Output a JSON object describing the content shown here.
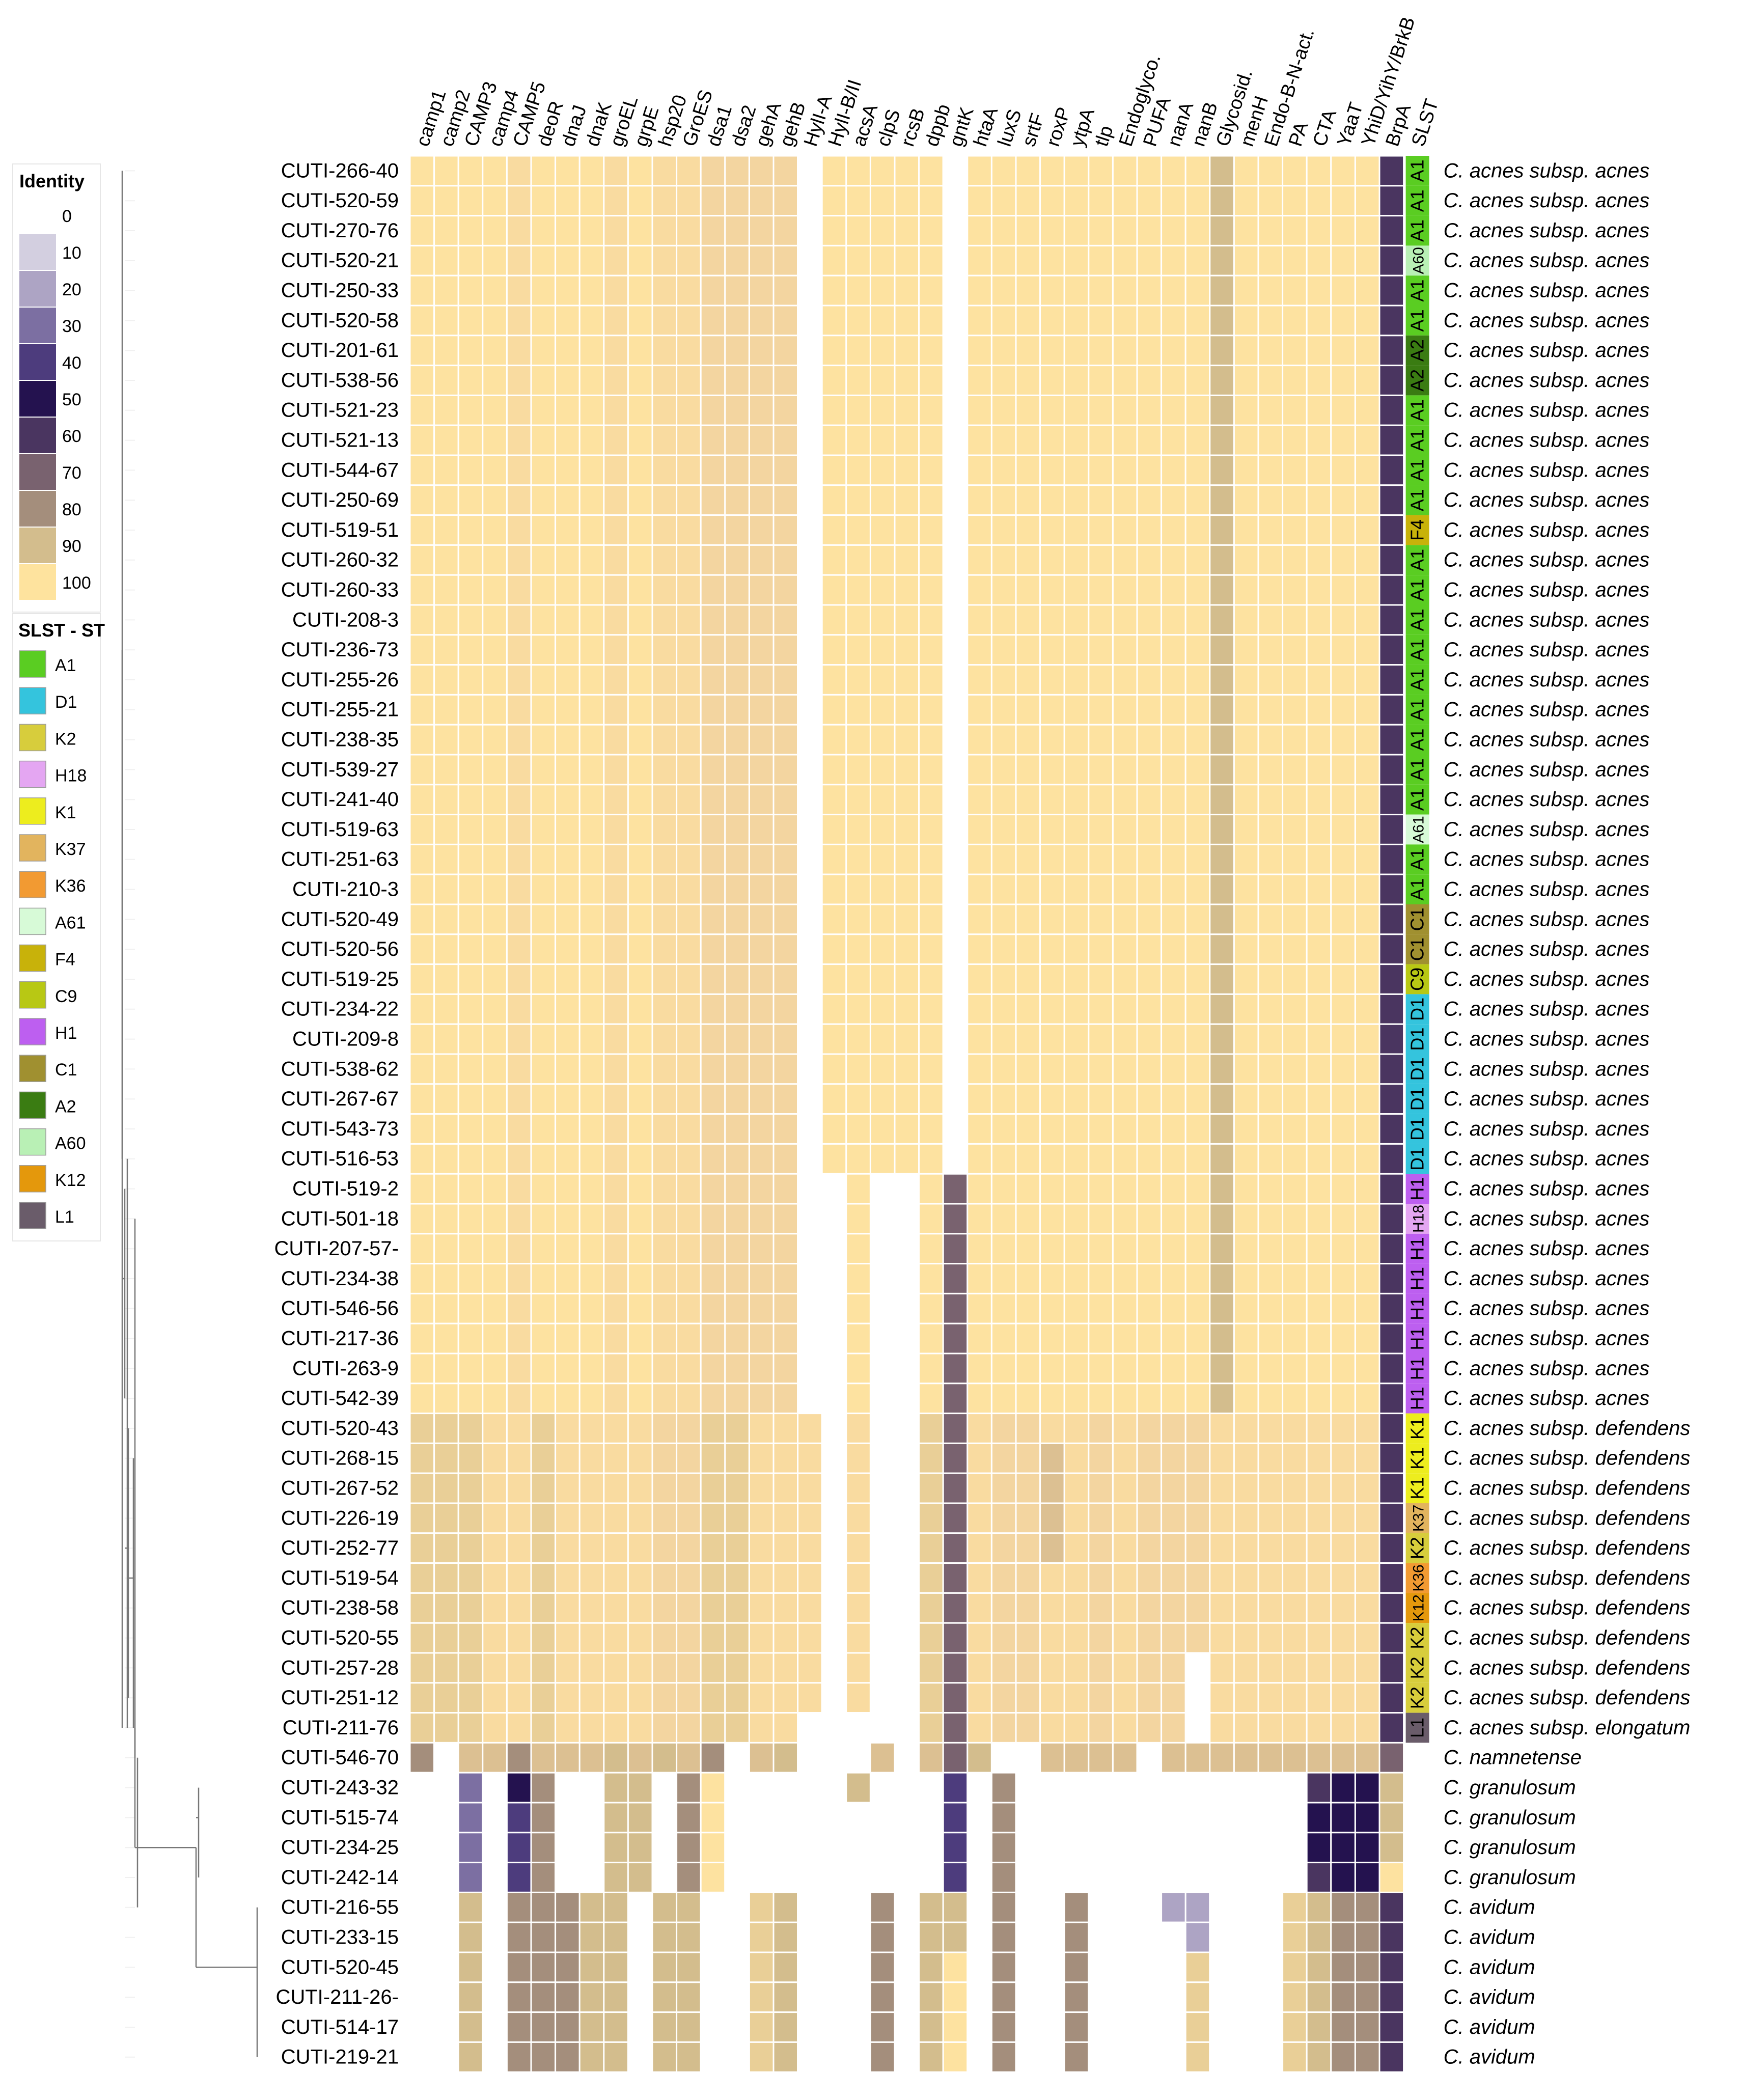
{
  "chart_data": {
    "type": "heatmap",
    "title": "",
    "columns": [
      "camp1",
      "camp2",
      "CAMP3",
      "camp4",
      "CAMP5",
      "deoR",
      "dnaJ",
      "dnaK",
      "groEL",
      "grpE",
      "hsp20",
      "GroES",
      "dsa1",
      "dsa2",
      "gehA",
      "gehB",
      "HylI-A",
      "HylI-B/II",
      "acsA",
      "clpS",
      "rcsB",
      "dppb",
      "gntK",
      "htaA",
      "luxS",
      "srtF",
      "roxP",
      "ytpA",
      "tlp",
      "Endoglyco.",
      "PUFA",
      "nanA",
      "nanB",
      "Glycosid.",
      "menH",
      "Endo-B-N-act.",
      "PA",
      "CTA",
      "YaaT",
      "YhiD/YihY/BrkB",
      "BrpA"
    ],
    "slst_header": "SLST",
    "identity_legend": {
      "title": "Identity",
      "levels": [
        "0",
        "10",
        "20",
        "30",
        "40",
        "50",
        "60",
        "70",
        "80",
        "90",
        "100"
      ],
      "colors": [
        "#ffffff",
        "#d3cfe0",
        "#ada4c4",
        "#7c6fa2",
        "#4d3c7d",
        "#24124f",
        "#4a3560",
        "#79626f",
        "#a48e7c",
        "#d3bd8d",
        "#fee39e"
      ]
    },
    "slst_legend": {
      "title": "SLST - ST",
      "items": [
        {
          "name": "A1",
          "color": "#5acd22"
        },
        {
          "name": "D1",
          "color": "#34c4dd"
        },
        {
          "name": "K2",
          "color": "#d7cd3c"
        },
        {
          "name": "H18",
          "color": "#e4a6f2"
        },
        {
          "name": "K1",
          "color": "#eded1e"
        },
        {
          "name": "K37",
          "color": "#e2b45e"
        },
        {
          "name": "K36",
          "color": "#f29a32"
        },
        {
          "name": "A61",
          "color": "#d7fad7"
        },
        {
          "name": "F4",
          "color": "#c8b20a"
        },
        {
          "name": "C9",
          "color": "#b8c814"
        },
        {
          "name": "H1",
          "color": "#bd5ff0"
        },
        {
          "name": "C1",
          "color": "#a09030"
        },
        {
          "name": "A2",
          "color": "#3a7c12"
        },
        {
          "name": "A60",
          "color": "#b9f0b5"
        },
        {
          "name": "K12",
          "color": "#e4980c"
        },
        {
          "name": "L1",
          "color": "#6a5c6a"
        }
      ]
    },
    "rows": [
      {
        "id": "CUTI-266-40",
        "st": "A1",
        "sp": "C. acnes subsp. acnes",
        "g": "a"
      },
      {
        "id": "CUTI-520-59",
        "st": "A1",
        "sp": "C. acnes subsp. acnes",
        "g": "a"
      },
      {
        "id": "CUTI-270-76",
        "st": "A1",
        "sp": "C. acnes subsp. acnes",
        "g": "a"
      },
      {
        "id": "CUTI-520-21",
        "st": "A60",
        "sp": "C. acnes subsp. acnes",
        "g": "a"
      },
      {
        "id": "CUTI-250-33",
        "st": "A1",
        "sp": "C. acnes subsp. acnes",
        "g": "a"
      },
      {
        "id": "CUTI-520-58",
        "st": "A1",
        "sp": "C. acnes subsp. acnes",
        "g": "a"
      },
      {
        "id": "CUTI-201-61",
        "st": "A2",
        "sp": "C. acnes subsp. acnes",
        "g": "a"
      },
      {
        "id": "CUTI-538-56",
        "st": "A2",
        "sp": "C. acnes subsp. acnes",
        "g": "a"
      },
      {
        "id": "CUTI-521-23",
        "st": "A1",
        "sp": "C. acnes subsp. acnes",
        "g": "a"
      },
      {
        "id": "CUTI-521-13",
        "st": "A1",
        "sp": "C. acnes subsp. acnes",
        "g": "a"
      },
      {
        "id": "CUTI-544-67",
        "st": "A1",
        "sp": "C. acnes subsp. acnes",
        "g": "a"
      },
      {
        "id": "CUTI-250-69",
        "st": "A1",
        "sp": "C. acnes subsp. acnes",
        "g": "a"
      },
      {
        "id": "CUTI-519-51",
        "st": "F4",
        "sp": "C. acnes subsp. acnes",
        "g": "a"
      },
      {
        "id": "CUTI-260-32",
        "st": "A1",
        "sp": "C. acnes subsp. acnes",
        "g": "a"
      },
      {
        "id": "CUTI-260-33",
        "st": "A1",
        "sp": "C. acnes subsp. acnes",
        "g": "a"
      },
      {
        "id": "CUTI-208-3",
        "st": "A1",
        "sp": "C. acnes subsp. acnes",
        "g": "a"
      },
      {
        "id": "CUTI-236-73",
        "st": "A1",
        "sp": "C. acnes subsp. acnes",
        "g": "a"
      },
      {
        "id": "CUTI-255-26",
        "st": "A1",
        "sp": "C. acnes subsp. acnes",
        "g": "a"
      },
      {
        "id": "CUTI-255-21",
        "st": "A1",
        "sp": "C. acnes subsp. acnes",
        "g": "a"
      },
      {
        "id": "CUTI-238-35",
        "st": "A1",
        "sp": "C. acnes subsp. acnes",
        "g": "a"
      },
      {
        "id": "CUTI-539-27",
        "st": "A1",
        "sp": "C. acnes subsp. acnes",
        "g": "a"
      },
      {
        "id": "CUTI-241-40",
        "st": "A1",
        "sp": "C. acnes subsp. acnes",
        "g": "a"
      },
      {
        "id": "CUTI-519-63",
        "st": "A61",
        "sp": "C. acnes subsp. acnes",
        "g": "a"
      },
      {
        "id": "CUTI-251-63",
        "st": "A1",
        "sp": "C. acnes subsp. acnes",
        "g": "a"
      },
      {
        "id": "CUTI-210-3",
        "st": "A1",
        "sp": "C. acnes subsp. acnes",
        "g": "a"
      },
      {
        "id": "CUTI-520-49",
        "st": "C1",
        "sp": "C. acnes subsp. acnes",
        "g": "a"
      },
      {
        "id": "CUTI-520-56",
        "st": "C1",
        "sp": "C. acnes subsp. acnes",
        "g": "a"
      },
      {
        "id": "CUTI-519-25",
        "st": "C9",
        "sp": "C. acnes subsp. acnes",
        "g": "a"
      },
      {
        "id": "CUTI-234-22",
        "st": "D1",
        "sp": "C. acnes subsp. acnes",
        "g": "a"
      },
      {
        "id": "CUTI-209-8",
        "st": "D1",
        "sp": "C. acnes subsp. acnes",
        "g": "a"
      },
      {
        "id": "CUTI-538-62",
        "st": "D1",
        "sp": "C. acnes subsp. acnes",
        "g": "a"
      },
      {
        "id": "CUTI-267-67",
        "st": "D1",
        "sp": "C. acnes subsp. acnes",
        "g": "a"
      },
      {
        "id": "CUTI-543-73",
        "st": "D1",
        "sp": "C. acnes subsp. acnes",
        "g": "a"
      },
      {
        "id": "CUTI-516-53",
        "st": "D1",
        "sp": "C. acnes subsp. acnes",
        "g": "a"
      },
      {
        "id": "CUTI-519-2",
        "st": "H1",
        "sp": "C. acnes subsp. acnes",
        "g": "h"
      },
      {
        "id": "CUTI-501-18",
        "st": "H18",
        "sp": "C. acnes subsp. acnes",
        "g": "h"
      },
      {
        "id": "CUTI-207-57-",
        "st": "H1",
        "sp": "C. acnes subsp. acnes",
        "g": "h"
      },
      {
        "id": "CUTI-234-38",
        "st": "H1",
        "sp": "C. acnes subsp. acnes",
        "g": "h"
      },
      {
        "id": "CUTI-546-56",
        "st": "H1",
        "sp": "C. acnes subsp. acnes",
        "g": "h"
      },
      {
        "id": "CUTI-217-36",
        "st": "H1",
        "sp": "C. acnes subsp. acnes",
        "g": "h"
      },
      {
        "id": "CUTI-263-9",
        "st": "H1",
        "sp": "C. acnes subsp. acnes",
        "g": "h"
      },
      {
        "id": "CUTI-542-39",
        "st": "H1",
        "sp": "C. acnes subsp. acnes",
        "g": "h"
      },
      {
        "id": "CUTI-520-43",
        "st": "K1",
        "sp": "C. acnes subsp. defendens",
        "g": "k"
      },
      {
        "id": "CUTI-268-15",
        "st": "K1",
        "sp": "C. acnes subsp. defendens",
        "g": "k"
      },
      {
        "id": "CUTI-267-52",
        "st": "K1",
        "sp": "C. acnes subsp. defendens",
        "g": "k"
      },
      {
        "id": "CUTI-226-19",
        "st": "K37",
        "sp": "C. acnes subsp. defendens",
        "g": "k"
      },
      {
        "id": "CUTI-252-77",
        "st": "K2",
        "sp": "C. acnes subsp. defendens",
        "g": "k"
      },
      {
        "id": "CUTI-519-54",
        "st": "K36",
        "sp": "C. acnes subsp. defendens",
        "g": "k"
      },
      {
        "id": "CUTI-238-58",
        "st": "K12",
        "sp": "C. acnes subsp. defendens",
        "g": "k"
      },
      {
        "id": "CUTI-520-55",
        "st": "K2",
        "sp": "C. acnes subsp. defendens",
        "g": "k"
      },
      {
        "id": "CUTI-257-28",
        "st": "K2",
        "sp": "C. acnes subsp. defendens",
        "g": "k"
      },
      {
        "id": "CUTI-251-12",
        "st": "K2",
        "sp": "C. acnes subsp. defendens",
        "g": "k"
      },
      {
        "id": "CUTI-211-76",
        "st": "L1",
        "sp": "C. acnes subsp. elongatum",
        "g": "l"
      },
      {
        "id": "CUTI-546-70",
        "st": "",
        "sp": "C. namnetense",
        "g": "n"
      },
      {
        "id": "CUTI-243-32",
        "st": "",
        "sp": "C. granulosum",
        "g": "gr"
      },
      {
        "id": "CUTI-515-74",
        "st": "",
        "sp": "C. granulosum",
        "g": "gr"
      },
      {
        "id": "CUTI-234-25",
        "st": "",
        "sp": "C. granulosum",
        "g": "gr"
      },
      {
        "id": "CUTI-242-14",
        "st": "",
        "sp": "C. granulosum",
        "g": "gr"
      },
      {
        "id": "CUTI-216-55",
        "st": "",
        "sp": "C. avidum",
        "g": "av"
      },
      {
        "id": "CUTI-233-15",
        "st": "",
        "sp": "C. avidum",
        "g": "av"
      },
      {
        "id": "CUTI-520-45",
        "st": "",
        "sp": "C. avidum",
        "g": "av"
      },
      {
        "id": "CUTI-211-26-",
        "st": "",
        "sp": "C. avidum",
        "g": "av"
      },
      {
        "id": "CUTI-514-17",
        "st": "",
        "sp": "C. avidum",
        "g": "av"
      },
      {
        "id": "CUTI-219-21",
        "st": "",
        "sp": "C. avidum",
        "g": "av"
      }
    ]
  }
}
